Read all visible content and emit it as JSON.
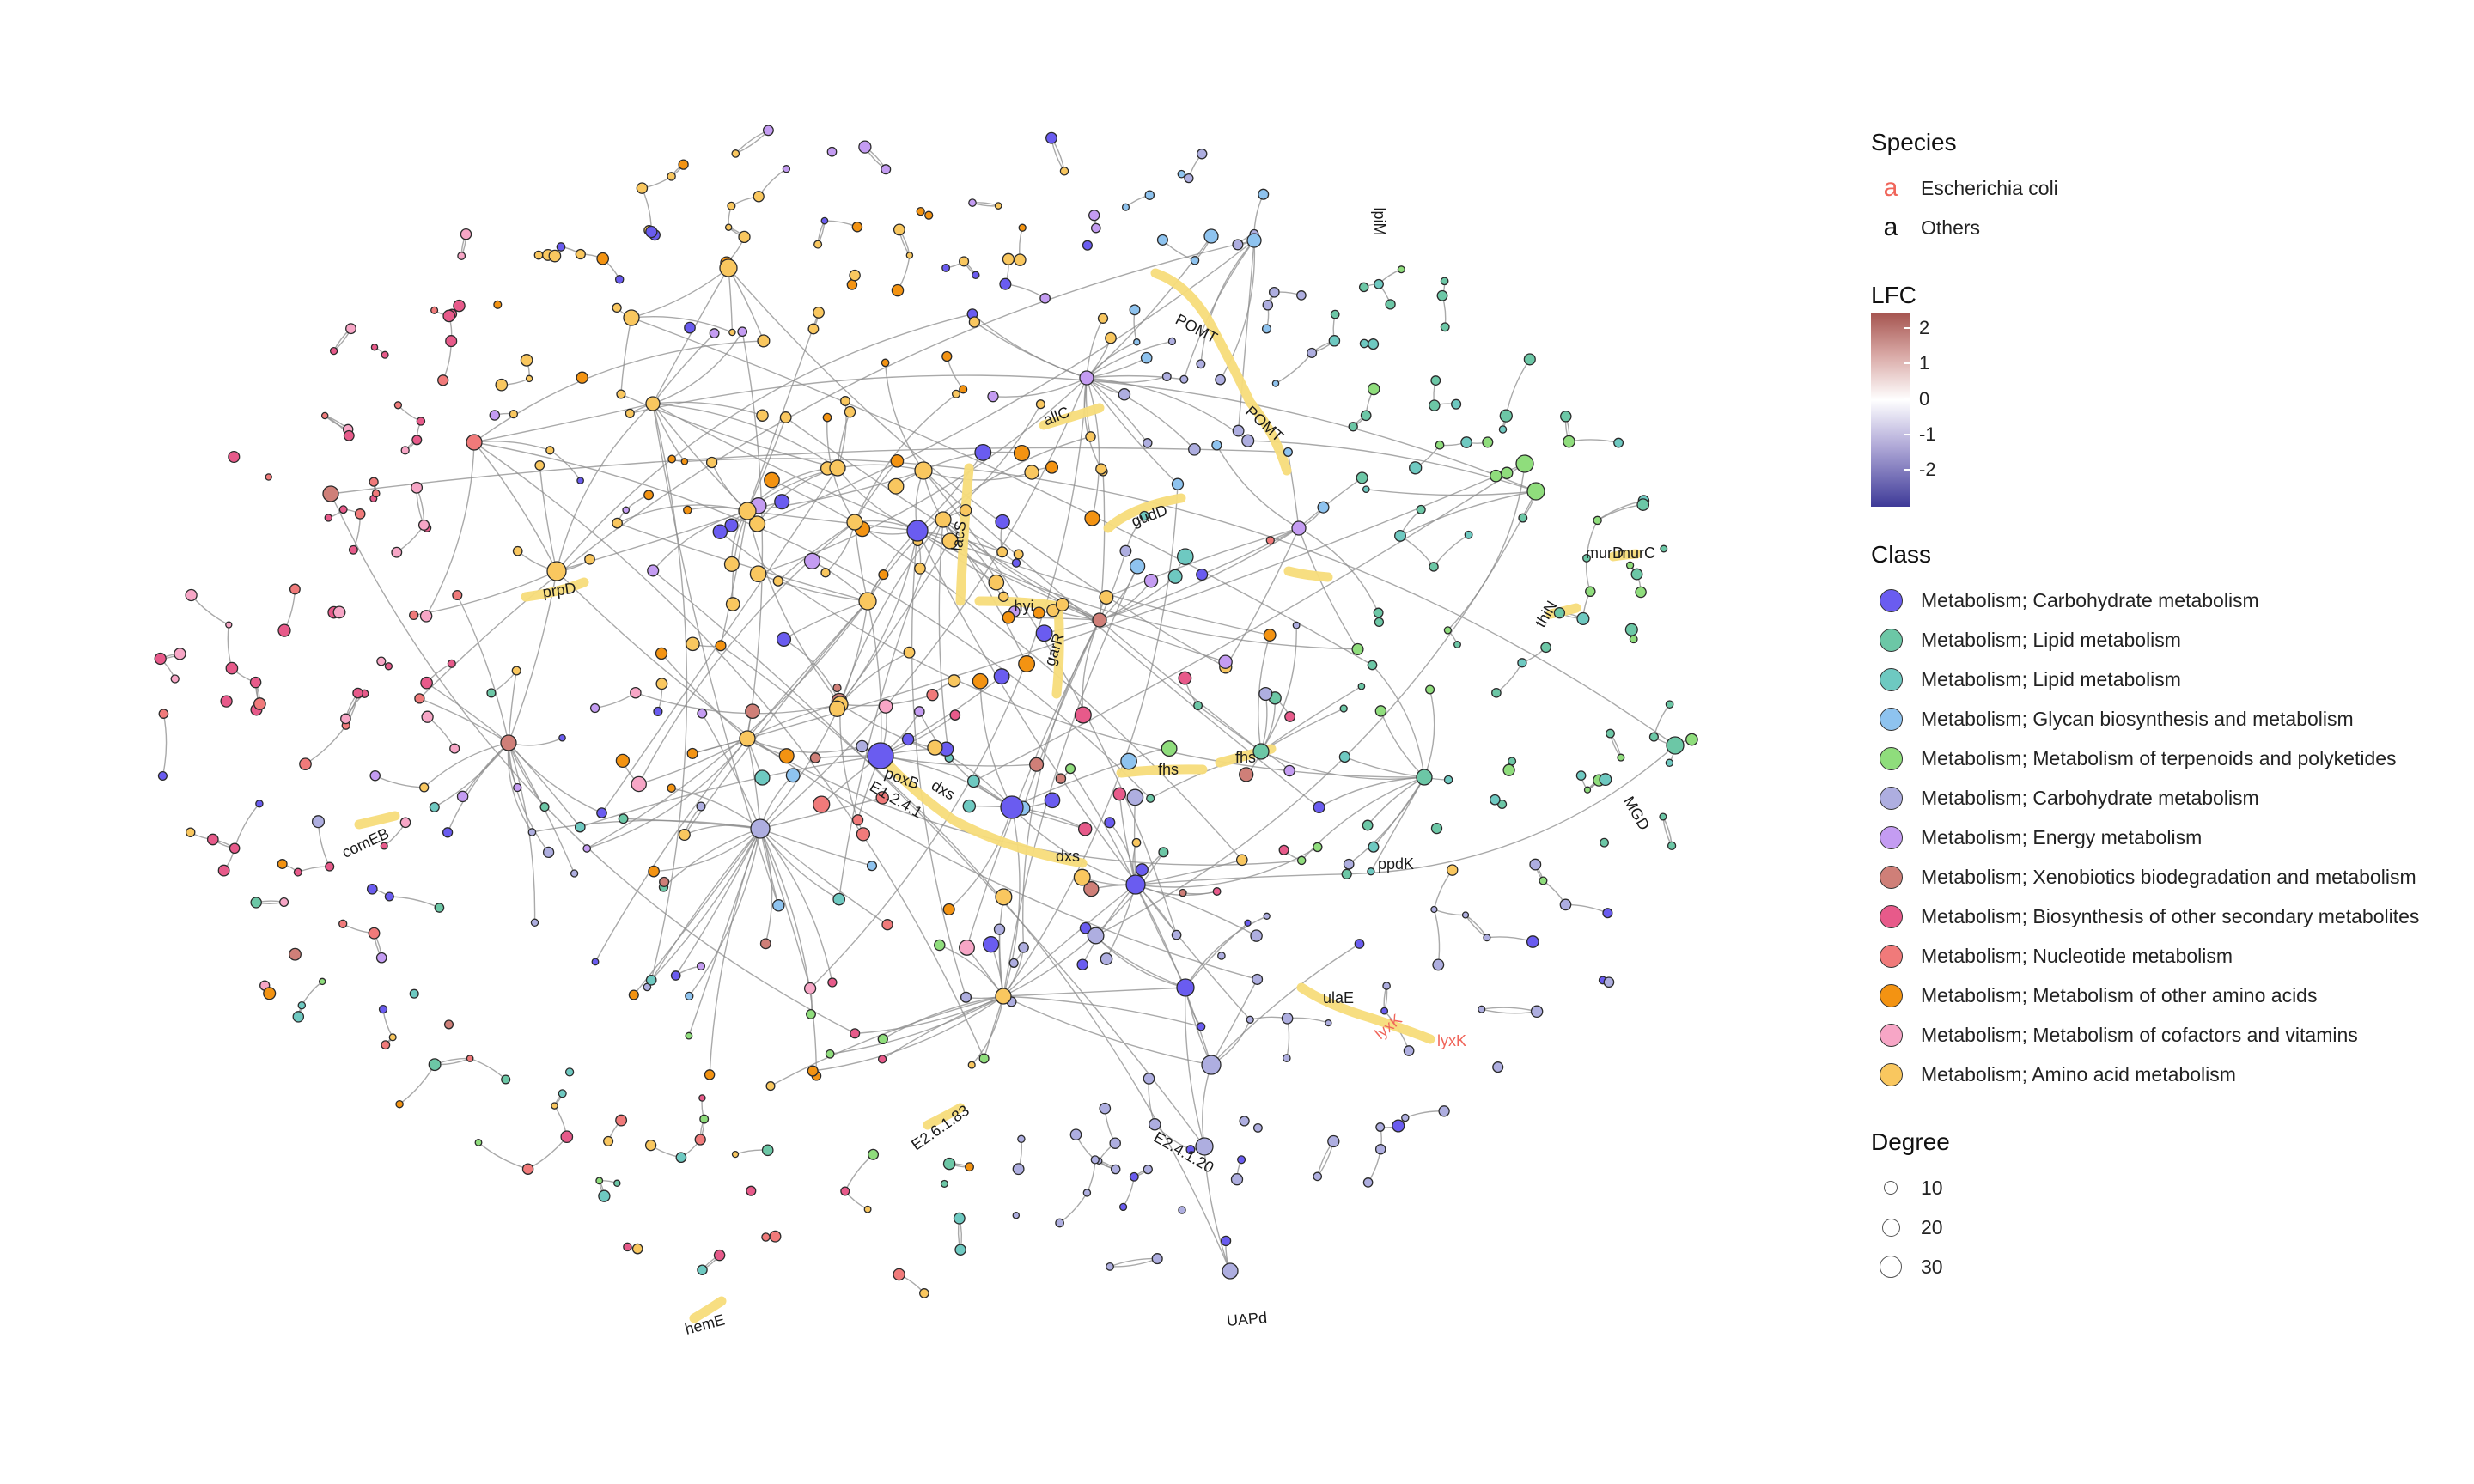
{
  "legend": {
    "species": {
      "title": "Species",
      "items": [
        {
          "glyph": "a",
          "label": "Escherichia coli",
          "color": "#f0655a"
        },
        {
          "glyph": "a",
          "label": "Others",
          "color": "#111111"
        }
      ]
    },
    "lfc": {
      "title": "LFC",
      "ticks": [
        {
          "value": 2,
          "label": "2"
        },
        {
          "value": 1,
          "label": "1"
        },
        {
          "value": 0,
          "label": "0"
        },
        {
          "value": -1,
          "label": "-1"
        },
        {
          "value": -2,
          "label": "-2"
        }
      ],
      "colors": {
        "high": "#a5544f",
        "mid": "#ffffff",
        "low": "#3e3a98"
      }
    },
    "class": {
      "title": "Class",
      "items": [
        {
          "label": "Metabolism; Carbohydrate metabolism",
          "color": "#6a5cf0"
        },
        {
          "label": "Metabolism; Lipid metabolism",
          "color": "#6cc7a6"
        },
        {
          "label": "Metabolism; Lipid metabolism",
          "color": "#6ec9c1"
        },
        {
          "label": "Metabolism; Glycan biosynthesis and metabolism",
          "color": "#8ec3ef"
        },
        {
          "label": "Metabolism; Metabolism of terpenoids and polyketides",
          "color": "#8fdd7c"
        },
        {
          "label": "Metabolism; Carbohydrate metabolism",
          "color": "#aeaee0"
        },
        {
          "label": "Metabolism; Energy metabolism",
          "color": "#c49cf2"
        },
        {
          "label": "Metabolism; Xenobiotics biodegradation and metabolism",
          "color": "#cf7f78"
        },
        {
          "label": "Metabolism; Biosynthesis of other secondary metabolites",
          "color": "#e75a8a"
        },
        {
          "label": "Metabolism; Nucleotide metabolism",
          "color": "#f07a7a"
        },
        {
          "label": "Metabolism; Metabolism of other amino acids",
          "color": "#f39312"
        },
        {
          "label": "Metabolism; Metabolism of cofactors and vitamins",
          "color": "#f7a6c6"
        },
        {
          "label": "Metabolism; Amino acid metabolism",
          "color": "#f9c75f"
        }
      ]
    },
    "degree": {
      "title": "Degree",
      "items": [
        {
          "value": 10,
          "label": "10"
        },
        {
          "value": 20,
          "label": "20"
        },
        {
          "value": 30,
          "label": "30"
        }
      ]
    }
  },
  "network": {
    "highlight_color": "#f7dc7a",
    "edge_color": "#8c8c8c",
    "labels": [
      {
        "text": "POMT",
        "species": "Others"
      },
      {
        "text": "POMT",
        "species": "Others"
      },
      {
        "text": "allC",
        "species": "Others"
      },
      {
        "text": "gudD",
        "species": "Others"
      },
      {
        "text": "lacS",
        "species": "Others"
      },
      {
        "text": "hyi",
        "species": "Others"
      },
      {
        "text": "garR",
        "species": "Others"
      },
      {
        "text": "prpD",
        "species": "Others"
      },
      {
        "text": "murD",
        "species": "Others"
      },
      {
        "text": "murC",
        "species": "Others"
      },
      {
        "text": "thiN",
        "species": "Others"
      },
      {
        "text": "fhs",
        "species": "Others"
      },
      {
        "text": "fhs",
        "species": "Others"
      },
      {
        "text": "poxB",
        "species": "Others"
      },
      {
        "text": "dxs",
        "species": "Others"
      },
      {
        "text": "E1.2.4.1",
        "species": "Others"
      },
      {
        "text": "dxs",
        "species": "Others"
      },
      {
        "text": "comEB",
        "species": "Others"
      },
      {
        "text": "MGD",
        "species": "Others"
      },
      {
        "text": "ppdK",
        "species": "Others"
      },
      {
        "text": "ulaE",
        "species": "Others"
      },
      {
        "text": "lyxK",
        "species": "Escherichia coli"
      },
      {
        "text": "lyxK",
        "species": "Escherichia coli"
      },
      {
        "text": "E2.6.1.83",
        "species": "Others"
      },
      {
        "text": "E2.4.1.20",
        "species": "Others"
      },
      {
        "text": "hemE",
        "species": "Others"
      },
      {
        "text": "UAPd",
        "species": "Others"
      },
      {
        "text": "lpiM",
        "species": "Others"
      }
    ]
  }
}
